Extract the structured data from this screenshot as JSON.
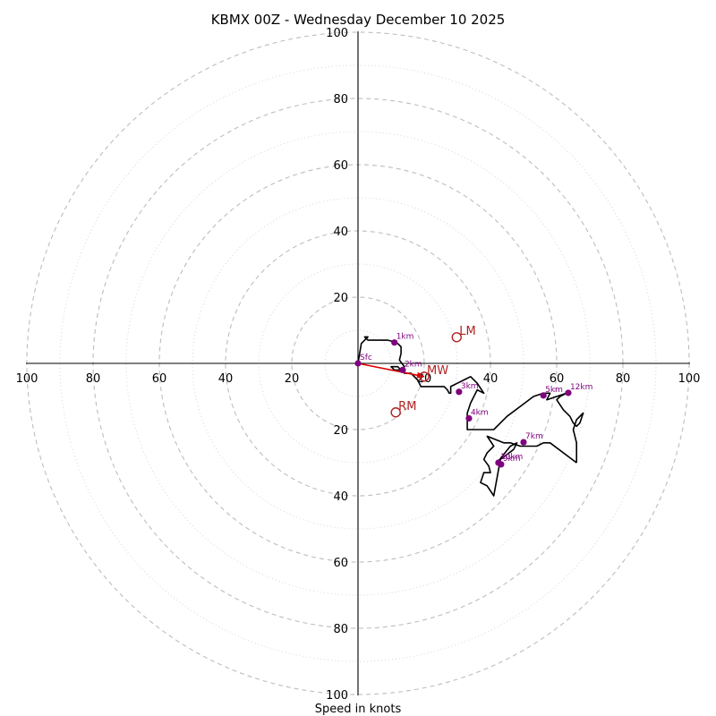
{
  "chart_data": {
    "type": "hodograph",
    "title": "KBMX 00Z - Wednesday December 10 2025",
    "xlabel": "Speed in knots",
    "ylabel": "",
    "ring_range": [
      0,
      100
    ],
    "ring_major_step": 20,
    "ring_minor_step": 10,
    "tick_labels": {
      "left": [
        "100",
        "80",
        "60",
        "40",
        "20"
      ],
      "right": [
        "20",
        "40",
        "60",
        "80",
        "100"
      ],
      "top": [
        "100",
        "80",
        "60",
        "40",
        "20"
      ],
      "bottom": [
        "20",
        "40",
        "60",
        "80",
        "100"
      ]
    },
    "colors": {
      "hodograph": "#000000",
      "height_marker": "#7f007f",
      "storm_motion": "#b22222",
      "shear_vector": "#e00000",
      "grid": "#bdbdbd"
    },
    "hodograph": {
      "u": [
        0,
        1,
        3,
        2,
        3,
        5,
        7,
        9,
        11,
        12,
        13,
        13,
        12.5,
        14,
        13,
        11,
        10,
        12,
        13,
        14,
        14,
        16,
        17,
        18,
        19,
        20,
        22,
        24,
        26,
        27,
        27.5,
        28,
        28,
        30,
        32,
        34,
        36,
        38,
        36,
        34,
        33,
        33,
        33,
        41,
        45,
        49,
        53,
        56,
        58,
        57,
        60,
        63,
        61,
        60,
        62,
        64,
        65,
        66,
        67,
        68,
        66,
        65,
        66,
        66
      ],
      "v": [
        0,
        6,
        8,
        8,
        7,
        7,
        7,
        7,
        6.5,
        6,
        5,
        3,
        1,
        -1,
        -2,
        -2,
        -1,
        -1,
        -2,
        -2,
        -3,
        -3,
        -4,
        -5,
        -7,
        -7,
        -7,
        -7,
        -7,
        -8,
        -9,
        -9,
        -7,
        -6,
        -5,
        -4,
        -6,
        -9,
        -8,
        -12,
        -15,
        -19,
        -20,
        -20,
        -16,
        -13,
        -10,
        -9,
        -9,
        -11,
        -10,
        -9,
        -10,
        -11,
        -14,
        -16,
        -18,
        -19,
        -18,
        -15,
        -17,
        -20,
        -24,
        -30
      ]
    },
    "hodograph_tail": {
      "u": [
        66,
        58,
        56,
        54,
        49,
        46,
        44,
        39,
        41,
        39,
        38,
        39.5,
        40,
        38,
        37,
        39,
        41,
        43,
        47,
        48,
        46,
        42
      ],
      "v": [
        -30,
        -24,
        -24,
        -25,
        -25,
        -24,
        -24,
        -22,
        -25,
        -27,
        -29,
        -31,
        -33,
        -33,
        -36,
        -37,
        -40,
        -29,
        -26,
        -24,
        -25,
        -30
      ]
    },
    "height_markers": [
      {
        "label": "Sfc",
        "u": 0,
        "v": 0
      },
      {
        "label": "1km",
        "u": 11,
        "v": 6.3
      },
      {
        "label": "2km",
        "u": 13.5,
        "v": -2
      },
      {
        "label": "3km",
        "u": 30.5,
        "v": -8.6
      },
      {
        "label": "4km",
        "u": 33.5,
        "v": -16.6
      },
      {
        "label": "5km",
        "u": 56,
        "v": -9.7
      },
      {
        "label": "7km",
        "u": 50,
        "v": -23.8
      },
      {
        "label": "9km",
        "u": 43.2,
        "v": -30.5
      },
      {
        "label": "10km",
        "u": 42.4,
        "v": -30
      },
      {
        "label": "12km",
        "u": 63.5,
        "v": -8.9
      }
    ],
    "storm_motion": [
      {
        "label": "LM",
        "u": 29.8,
        "v": 7.9
      },
      {
        "label": "MW",
        "u": 20,
        "v": -4
      },
      {
        "label": "RM",
        "u": 11.4,
        "v": -14.8
      }
    ],
    "shear_vector": {
      "label": "",
      "u": 20,
      "v": -4
    }
  }
}
